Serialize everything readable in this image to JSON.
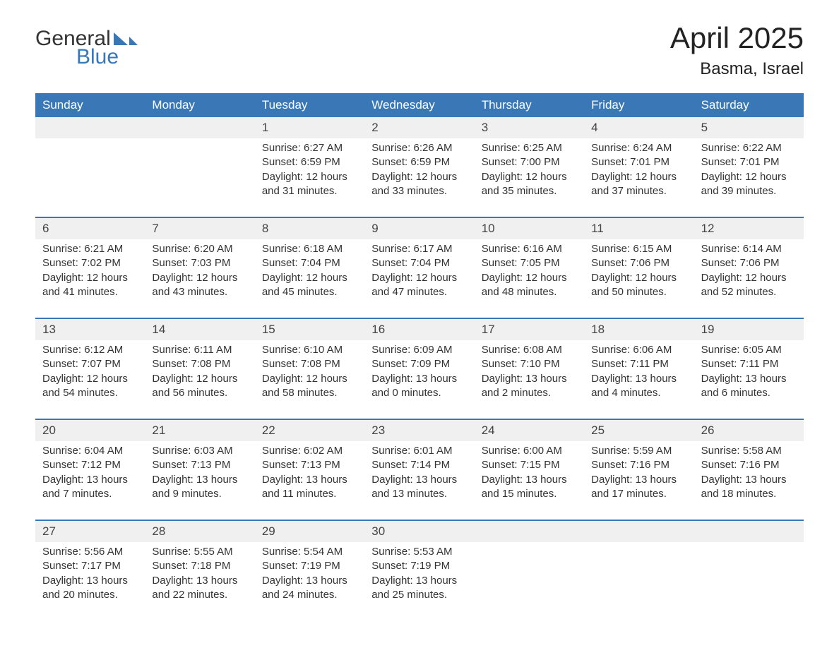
{
  "brand": {
    "text_general": "General",
    "text_blue": "Blue",
    "accent_color": "#3a77b7",
    "text_color": "#333333"
  },
  "title": "April 2025",
  "location": "Basma, Israel",
  "colors": {
    "header_bg": "#3a77b7",
    "header_text": "#ffffff",
    "daynum_bg": "#f0f0f0",
    "week_divider": "#3a77b7",
    "body_text": "#333333",
    "page_bg": "#ffffff"
  },
  "labels": {
    "sunrise_prefix": "Sunrise: ",
    "sunset_prefix": "Sunset: ",
    "daylight_prefix": "Daylight: "
  },
  "weekdays": [
    "Sunday",
    "Monday",
    "Tuesday",
    "Wednesday",
    "Thursday",
    "Friday",
    "Saturday"
  ],
  "weeks": [
    [
      null,
      null,
      {
        "n": "1",
        "sunrise": "6:27 AM",
        "sunset": "6:59 PM",
        "daylight1": "12 hours",
        "daylight2": "and 31 minutes."
      },
      {
        "n": "2",
        "sunrise": "6:26 AM",
        "sunset": "6:59 PM",
        "daylight1": "12 hours",
        "daylight2": "and 33 minutes."
      },
      {
        "n": "3",
        "sunrise": "6:25 AM",
        "sunset": "7:00 PM",
        "daylight1": "12 hours",
        "daylight2": "and 35 minutes."
      },
      {
        "n": "4",
        "sunrise": "6:24 AM",
        "sunset": "7:01 PM",
        "daylight1": "12 hours",
        "daylight2": "and 37 minutes."
      },
      {
        "n": "5",
        "sunrise": "6:22 AM",
        "sunset": "7:01 PM",
        "daylight1": "12 hours",
        "daylight2": "and 39 minutes."
      }
    ],
    [
      {
        "n": "6",
        "sunrise": "6:21 AM",
        "sunset": "7:02 PM",
        "daylight1": "12 hours",
        "daylight2": "and 41 minutes."
      },
      {
        "n": "7",
        "sunrise": "6:20 AM",
        "sunset": "7:03 PM",
        "daylight1": "12 hours",
        "daylight2": "and 43 minutes."
      },
      {
        "n": "8",
        "sunrise": "6:18 AM",
        "sunset": "7:04 PM",
        "daylight1": "12 hours",
        "daylight2": "and 45 minutes."
      },
      {
        "n": "9",
        "sunrise": "6:17 AM",
        "sunset": "7:04 PM",
        "daylight1": "12 hours",
        "daylight2": "and 47 minutes."
      },
      {
        "n": "10",
        "sunrise": "6:16 AM",
        "sunset": "7:05 PM",
        "daylight1": "12 hours",
        "daylight2": "and 48 minutes."
      },
      {
        "n": "11",
        "sunrise": "6:15 AM",
        "sunset": "7:06 PM",
        "daylight1": "12 hours",
        "daylight2": "and 50 minutes."
      },
      {
        "n": "12",
        "sunrise": "6:14 AM",
        "sunset": "7:06 PM",
        "daylight1": "12 hours",
        "daylight2": "and 52 minutes."
      }
    ],
    [
      {
        "n": "13",
        "sunrise": "6:12 AM",
        "sunset": "7:07 PM",
        "daylight1": "12 hours",
        "daylight2": "and 54 minutes."
      },
      {
        "n": "14",
        "sunrise": "6:11 AM",
        "sunset": "7:08 PM",
        "daylight1": "12 hours",
        "daylight2": "and 56 minutes."
      },
      {
        "n": "15",
        "sunrise": "6:10 AM",
        "sunset": "7:08 PM",
        "daylight1": "12 hours",
        "daylight2": "and 58 minutes."
      },
      {
        "n": "16",
        "sunrise": "6:09 AM",
        "sunset": "7:09 PM",
        "daylight1": "13 hours",
        "daylight2": "and 0 minutes."
      },
      {
        "n": "17",
        "sunrise": "6:08 AM",
        "sunset": "7:10 PM",
        "daylight1": "13 hours",
        "daylight2": "and 2 minutes."
      },
      {
        "n": "18",
        "sunrise": "6:06 AM",
        "sunset": "7:11 PM",
        "daylight1": "13 hours",
        "daylight2": "and 4 minutes."
      },
      {
        "n": "19",
        "sunrise": "6:05 AM",
        "sunset": "7:11 PM",
        "daylight1": "13 hours",
        "daylight2": "and 6 minutes."
      }
    ],
    [
      {
        "n": "20",
        "sunrise": "6:04 AM",
        "sunset": "7:12 PM",
        "daylight1": "13 hours",
        "daylight2": "and 7 minutes."
      },
      {
        "n": "21",
        "sunrise": "6:03 AM",
        "sunset": "7:13 PM",
        "daylight1": "13 hours",
        "daylight2": "and 9 minutes."
      },
      {
        "n": "22",
        "sunrise": "6:02 AM",
        "sunset": "7:13 PM",
        "daylight1": "13 hours",
        "daylight2": "and 11 minutes."
      },
      {
        "n": "23",
        "sunrise": "6:01 AM",
        "sunset": "7:14 PM",
        "daylight1": "13 hours",
        "daylight2": "and 13 minutes."
      },
      {
        "n": "24",
        "sunrise": "6:00 AM",
        "sunset": "7:15 PM",
        "daylight1": "13 hours",
        "daylight2": "and 15 minutes."
      },
      {
        "n": "25",
        "sunrise": "5:59 AM",
        "sunset": "7:16 PM",
        "daylight1": "13 hours",
        "daylight2": "and 17 minutes."
      },
      {
        "n": "26",
        "sunrise": "5:58 AM",
        "sunset": "7:16 PM",
        "daylight1": "13 hours",
        "daylight2": "and 18 minutes."
      }
    ],
    [
      {
        "n": "27",
        "sunrise": "5:56 AM",
        "sunset": "7:17 PM",
        "daylight1": "13 hours",
        "daylight2": "and 20 minutes."
      },
      {
        "n": "28",
        "sunrise": "5:55 AM",
        "sunset": "7:18 PM",
        "daylight1": "13 hours",
        "daylight2": "and 22 minutes."
      },
      {
        "n": "29",
        "sunrise": "5:54 AM",
        "sunset": "7:19 PM",
        "daylight1": "13 hours",
        "daylight2": "and 24 minutes."
      },
      {
        "n": "30",
        "sunrise": "5:53 AM",
        "sunset": "7:19 PM",
        "daylight1": "13 hours",
        "daylight2": "and 25 minutes."
      },
      null,
      null,
      null
    ]
  ]
}
